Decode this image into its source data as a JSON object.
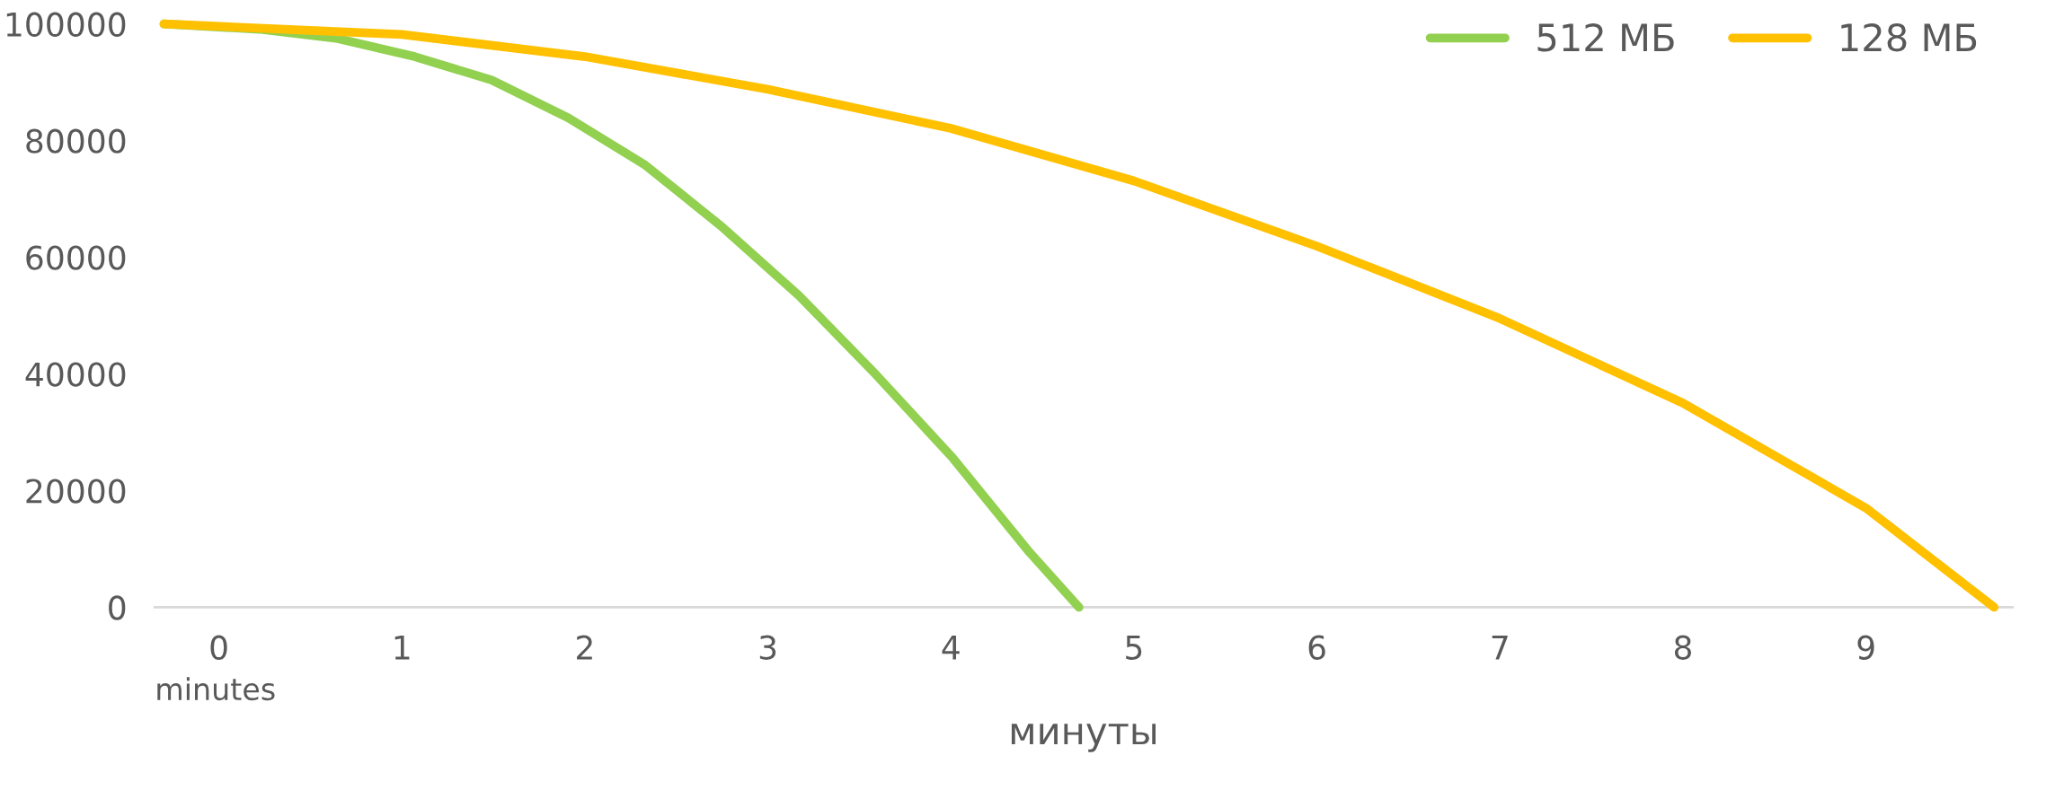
{
  "chart_data": {
    "type": "line",
    "xlabel": "минуты",
    "annotations": [
      "minutes"
    ],
    "series": [
      {
        "name": "512 МБ",
        "color": "#92d050",
        "x": [
          -0.3,
          0.22,
          0.65,
          1.07,
          1.49,
          1.91,
          2.33,
          2.75,
          3.17,
          3.59,
          4.01,
          4.43,
          4.7
        ],
        "values": [
          100000,
          99100,
          97500,
          94400,
          90400,
          83900,
          75800,
          65200,
          53400,
          39900,
          25600,
          9400,
          0
        ]
      },
      {
        "name": "128 МБ",
        "color": "#ffc000",
        "x": [
          -0.3,
          1,
          2,
          3,
          4,
          5,
          6,
          7,
          8,
          9,
          9.7
        ],
        "values": [
          100000,
          98200,
          94400,
          88800,
          82100,
          73100,
          61900,
          49500,
          35000,
          17000,
          0
        ]
      }
    ],
    "xlim": [
      -0.35,
      9.8
    ],
    "xticks": [
      0,
      1,
      2,
      3,
      4,
      5,
      6,
      7,
      8,
      9
    ],
    "ylim": [
      0,
      100000
    ],
    "yticks": [
      0,
      20000,
      40000,
      60000,
      80000,
      100000
    ],
    "grid": false,
    "legend": "top right",
    "marker": "none",
    "line_style": "solid"
  }
}
